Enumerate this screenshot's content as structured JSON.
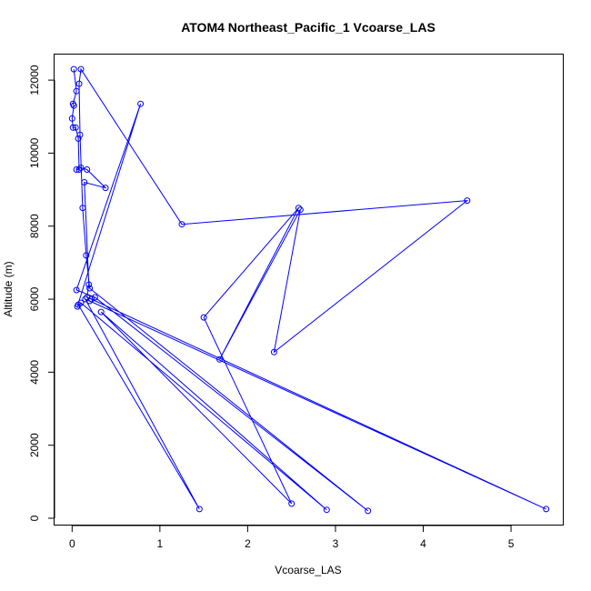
{
  "chart_data": {
    "type": "line",
    "title": "ATOM4 Northeast_Pacific_1 Vcoarse_LAS",
    "xlabel": "Vcoarse_LAS",
    "ylabel": "Altitude (m)",
    "xlim": [
      -0.2,
      5.6
    ],
    "ylim": [
      -200,
      12700
    ],
    "x_ticks": [
      0,
      1,
      2,
      3,
      4,
      5
    ],
    "y_ticks": [
      0,
      2000,
      4000,
      6000,
      8000,
      10000,
      12000
    ],
    "grid": false,
    "legend": "none",
    "series": [
      {
        "color": "#0000ff",
        "marker": "open-circle",
        "points": [
          [
            0.02,
            12300
          ],
          [
            0.05,
            11700
          ],
          [
            0.01,
            11350
          ],
          [
            0.02,
            11300
          ],
          [
            0.0,
            10950
          ],
          [
            0.01,
            10700
          ],
          [
            0.04,
            10700
          ],
          [
            0.07,
            10400
          ],
          [
            0.08,
            9550
          ],
          [
            0.05,
            9550
          ],
          [
            0.1,
            9600
          ],
          [
            0.17,
            9550
          ],
          [
            0.38,
            9050
          ],
          [
            0.14,
            9200
          ],
          [
            0.19,
            6400
          ],
          [
            0.17,
            6050
          ],
          [
            0.22,
            6000
          ],
          [
            5.4,
            250
          ],
          [
            0.2,
            5950
          ],
          [
            0.15,
            6000
          ],
          [
            1.45,
            250
          ],
          [
            0.07,
            5850
          ],
          [
            0.1,
            5900
          ],
          [
            2.9,
            230
          ],
          [
            0.33,
            5650
          ],
          [
            2.5,
            400
          ],
          [
            1.5,
            5500
          ],
          [
            2.58,
            8500
          ],
          [
            1.68,
            4350
          ],
          [
            2.6,
            8450
          ],
          [
            2.3,
            4550
          ],
          [
            4.5,
            8700
          ],
          [
            1.25,
            8050
          ],
          [
            0.1,
            12300
          ],
          [
            0.08,
            11900
          ],
          [
            0.09,
            10500
          ],
          [
            0.12,
            8500
          ],
          [
            0.16,
            7200
          ],
          [
            0.2,
            6300
          ],
          [
            3.37,
            200
          ],
          [
            0.26,
            6050
          ],
          [
            0.05,
            6250
          ],
          [
            0.78,
            11350
          ],
          [
            0.06,
            5800
          ]
        ]
      }
    ]
  }
}
